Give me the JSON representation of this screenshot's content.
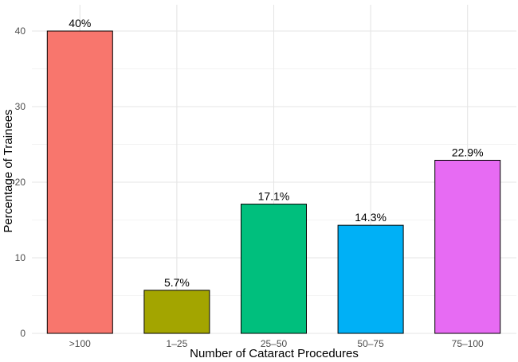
{
  "chart_data": {
    "type": "bar",
    "categories": [
      ">100",
      "1–25",
      "25–50",
      "50–75",
      "75–100"
    ],
    "values": [
      40,
      5.7,
      17.1,
      14.3,
      22.9
    ],
    "data_labels": [
      "40%",
      "5.7%",
      "17.1%",
      "14.3%",
      "22.9%"
    ],
    "colors": [
      "#F8766D",
      "#A3A500",
      "#00BF7D",
      "#00B0F6",
      "#E76BF3"
    ],
    "title": "",
    "xlabel": "Number of Cataract Procedures",
    "ylabel": "Percentage of Trainees",
    "ylim": [
      0,
      42
    ],
    "yticks": [
      0,
      10,
      20,
      30,
      40
    ],
    "grid": true,
    "legend": "none"
  }
}
